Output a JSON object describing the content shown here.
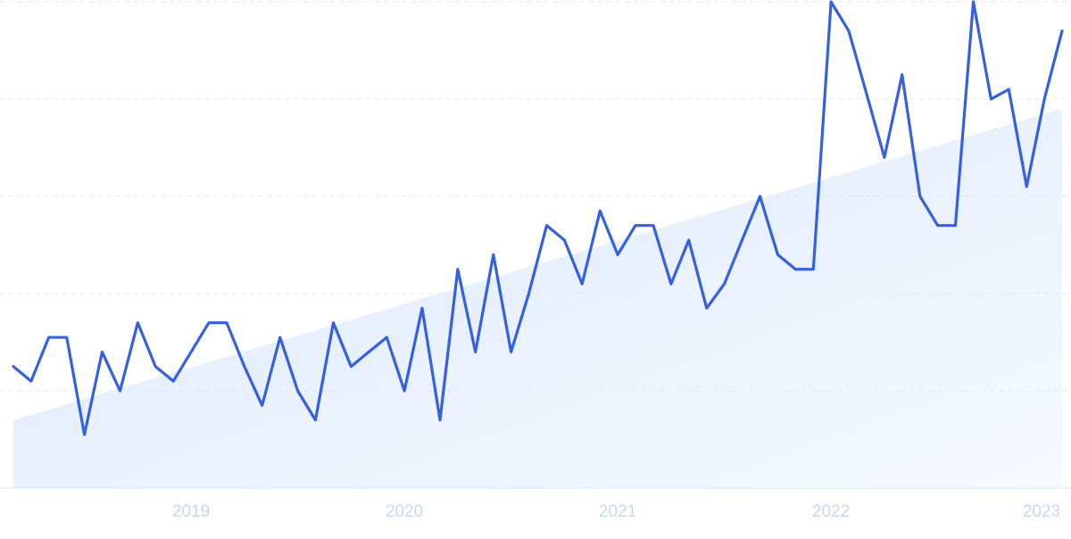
{
  "chart_data": {
    "type": "line",
    "x": [
      2018.167,
      2018.25,
      2018.333,
      2018.417,
      2018.5,
      2018.583,
      2018.667,
      2018.75,
      2018.833,
      2018.917,
      2019,
      2019.083,
      2019.167,
      2019.25,
      2019.333,
      2019.417,
      2019.5,
      2019.583,
      2019.667,
      2019.75,
      2019.833,
      2019.917,
      2020,
      2020.083,
      2020.167,
      2020.25,
      2020.333,
      2020.417,
      2020.5,
      2020.583,
      2020.667,
      2020.75,
      2020.833,
      2020.917,
      2021,
      2021.083,
      2021.167,
      2021.25,
      2021.333,
      2021.417,
      2021.5,
      2021.583,
      2021.667,
      2021.75,
      2021.833,
      2021.917,
      2022,
      2022.083,
      2022.167,
      2022.25,
      2022.333,
      2022.417,
      2022.5,
      2022.583,
      2022.667,
      2022.75,
      2022.833,
      2022.917,
      2023,
      2023.083
    ],
    "values": [
      25,
      22,
      31,
      31,
      11,
      28,
      20,
      34,
      25,
      22,
      28,
      34,
      34,
      25,
      17,
      31,
      20,
      14,
      34,
      25,
      28,
      31,
      20,
      37,
      14,
      45,
      28,
      48,
      28,
      40,
      54,
      51,
      42,
      57,
      48,
      54,
      54,
      42,
      51,
      37,
      42,
      51,
      60,
      48,
      45,
      45,
      100,
      94,
      81,
      68,
      85,
      60,
      54,
      54,
      100,
      80,
      82,
      62,
      80,
      94
    ],
    "color": "#3560e0",
    "trend": [
      14,
      78
    ],
    "trend_color": "#dbe8fb",
    "xlim": [
      2018.167,
      2023.083
    ],
    "xticks": [
      2019,
      2020,
      2021,
      2022,
      2023
    ],
    "ylim": [
      0,
      100
    ],
    "yticks": [
      0,
      20,
      40,
      60,
      80,
      100
    ],
    "grid": true
  }
}
